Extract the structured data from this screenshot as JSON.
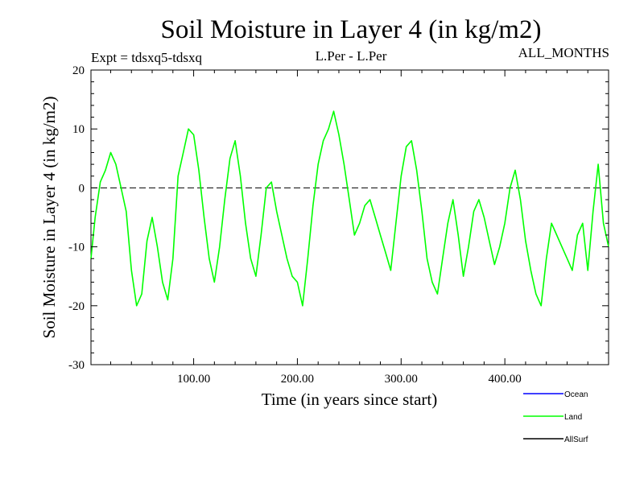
{
  "chart_data": {
    "type": "line",
    "title": "Soil Moisture in Layer 4 (in kg/m2)",
    "subtitle_left": "Expt = tdsxq5-tdsxq",
    "subtitle_center": "L.Per - L.Per",
    "subtitle_right": "ALL_MONTHS",
    "xlabel": "Time (in years since start)",
    "ylabel": "Soil Moisture in Layer 4 (in kg/m2)",
    "xlim": [
      1,
      500
    ],
    "ylim": [
      -30,
      20
    ],
    "x_ticks": [
      100,
      200,
      300,
      400
    ],
    "x_tick_labels": [
      "100.00",
      "200.00",
      "300.00",
      "400.00"
    ],
    "y_ticks": [
      -30,
      -20,
      -10,
      0,
      10,
      20
    ],
    "y_tick_labels": [
      "-30",
      "-20",
      "-10",
      "0",
      "10",
      "20"
    ],
    "zero_line": true,
    "legend_position": "bottom-right",
    "series": [
      {
        "name": "Ocean",
        "color": "#0000ff",
        "x": [],
        "values": []
      },
      {
        "name": "Land",
        "color": "#00ff00",
        "x": [
          1,
          5,
          10,
          15,
          20,
          25,
          30,
          35,
          40,
          45,
          50,
          55,
          60,
          65,
          70,
          75,
          80,
          85,
          90,
          95,
          100,
          105,
          110,
          115,
          120,
          125,
          130,
          135,
          140,
          145,
          150,
          155,
          160,
          165,
          170,
          175,
          180,
          185,
          190,
          195,
          200,
          205,
          210,
          215,
          220,
          225,
          230,
          235,
          240,
          245,
          250,
          255,
          260,
          265,
          270,
          275,
          280,
          285,
          290,
          295,
          300,
          305,
          310,
          315,
          320,
          325,
          330,
          335,
          340,
          345,
          350,
          355,
          360,
          365,
          370,
          375,
          380,
          385,
          390,
          395,
          400,
          405,
          410,
          415,
          420,
          425,
          430,
          435,
          440,
          445,
          450,
          455,
          460,
          465,
          470,
          475,
          480,
          485,
          490,
          495,
          500
        ],
        "values": [
          -12,
          -5,
          1,
          3,
          6,
          4,
          0,
          -4,
          -14,
          -20,
          -18,
          -9,
          -5,
          -10,
          -16,
          -19,
          -12,
          2,
          6,
          10,
          9,
          3,
          -5,
          -12,
          -16,
          -10,
          -2,
          5,
          8,
          2,
          -6,
          -12,
          -15,
          -8,
          0,
          1,
          -4,
          -8,
          -12,
          -15,
          -16,
          -20,
          -12,
          -3,
          4,
          8,
          10,
          13,
          9,
          4,
          -2,
          -8,
          -6,
          -3,
          -2,
          -5,
          -8,
          -11,
          -14,
          -6,
          2,
          7,
          8,
          3,
          -4,
          -12,
          -16,
          -18,
          -12,
          -6,
          -2,
          -8,
          -15,
          -10,
          -4,
          -2,
          -5,
          -9,
          -13,
          -10,
          -6,
          0,
          3,
          -2,
          -9,
          -14,
          -18,
          -20,
          -12,
          -6,
          -8,
          -10,
          -12,
          -14,
          -8,
          -6,
          -14,
          -4,
          4,
          -6,
          -10
        ]
      },
      {
        "name": "AllSurf",
        "color": "#000000",
        "x": [],
        "values": []
      }
    ]
  }
}
